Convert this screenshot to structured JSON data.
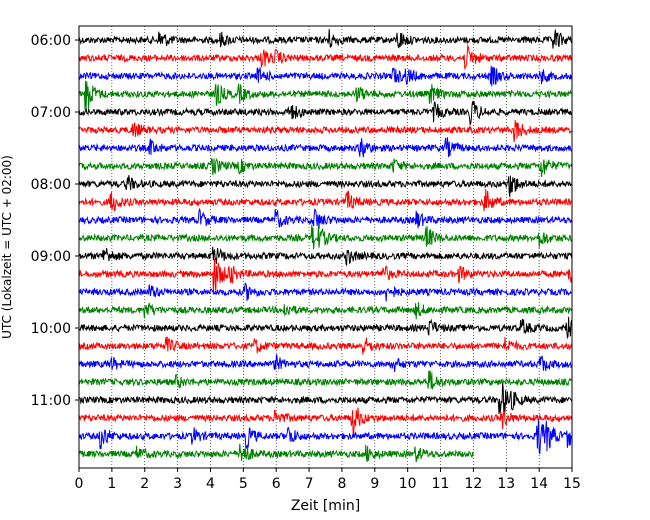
{
  "chart_data": {
    "type": "line",
    "subtype": "helicorder",
    "title": "",
    "xlabel": "Zeit  [min]",
    "ylabel": "UTC (Lokalzeit = UTC + 02:00)",
    "xlim": [
      0,
      15
    ],
    "x_ticks": [
      "0",
      "1",
      "2",
      "3",
      "4",
      "5",
      "6",
      "7",
      "8",
      "9",
      "10",
      "11",
      "12",
      "13",
      "14",
      "15"
    ],
    "y_tick_labels": [
      "06:00",
      "07:00",
      "08:00",
      "09:00",
      "10:00",
      "11:00"
    ],
    "y_tick_rows": [
      0,
      4,
      8,
      12,
      16,
      20
    ],
    "grid": "vertical dotted lines at each minute",
    "legend": "none",
    "color_cycle": [
      "#000000",
      "#ff0000",
      "#0000ff",
      "#008000"
    ],
    "rows": [
      {
        "start": "06:00",
        "color": "#000000",
        "end_min": 15,
        "events": [
          [
            2.5,
            0.45
          ],
          [
            4.35,
            0.3
          ],
          [
            7.6,
            0.5
          ],
          [
            9.75,
            0.45
          ],
          [
            14.5,
            0.5
          ]
        ]
      },
      {
        "start": "06:15",
        "color": "#ff0000",
        "end_min": 15,
        "events": [
          [
            5.6,
            0.45
          ],
          [
            6.0,
            0.35
          ],
          [
            11.8,
            0.6
          ],
          [
            12.0,
            0.3
          ]
        ]
      },
      {
        "start": "06:30",
        "color": "#0000ff",
        "end_min": 15,
        "events": [
          [
            5.5,
            0.35
          ],
          [
            9.6,
            0.4
          ],
          [
            10.0,
            0.35
          ],
          [
            12.6,
            0.45
          ],
          [
            14.1,
            0.3
          ]
        ]
      },
      {
        "start": "06:45",
        "color": "#008000",
        "end_min": 15,
        "events": [
          [
            0.25,
            0.9
          ],
          [
            4.2,
            0.6
          ],
          [
            4.9,
            0.4
          ],
          [
            8.5,
            0.35
          ],
          [
            10.7,
            0.5
          ]
        ]
      },
      {
        "start": "07:00",
        "color": "#000000",
        "end_min": 15,
        "events": [
          [
            6.45,
            0.45
          ],
          [
            10.85,
            0.4
          ],
          [
            11.95,
            0.7
          ]
        ]
      },
      {
        "start": "07:15",
        "color": "#ff0000",
        "end_min": 15,
        "events": [
          [
            1.7,
            0.35
          ],
          [
            13.3,
            0.55
          ]
        ]
      },
      {
        "start": "07:30",
        "color": "#0000ff",
        "end_min": 15,
        "events": [
          [
            2.2,
            0.35
          ],
          [
            8.6,
            0.5
          ],
          [
            11.2,
            0.45
          ]
        ]
      },
      {
        "start": "07:45",
        "color": "#008000",
        "end_min": 15,
        "events": [
          [
            4.1,
            0.4
          ],
          [
            4.9,
            0.3
          ],
          [
            9.6,
            0.3
          ],
          [
            14.1,
            0.55
          ]
        ]
      },
      {
        "start": "08:00",
        "color": "#000000",
        "end_min": 15,
        "events": [
          [
            1.5,
            0.35
          ],
          [
            13.15,
            0.6
          ]
        ]
      },
      {
        "start": "08:15",
        "color": "#ff0000",
        "end_min": 15,
        "events": [
          [
            1.0,
            0.55
          ],
          [
            8.2,
            0.45
          ],
          [
            12.4,
            0.55
          ]
        ]
      },
      {
        "start": "08:30",
        "color": "#0000ff",
        "end_min": 15,
        "events": [
          [
            3.7,
            0.45
          ],
          [
            6.0,
            0.5
          ],
          [
            7.2,
            0.6
          ],
          [
            10.3,
            0.4
          ]
        ]
      },
      {
        "start": "08:45",
        "color": "#008000",
        "end_min": 15,
        "events": [
          [
            7.15,
            0.6
          ],
          [
            7.35,
            0.5
          ],
          [
            10.6,
            0.55
          ],
          [
            14.05,
            0.4
          ]
        ]
      },
      {
        "start": "09:00",
        "color": "#000000",
        "end_min": 15,
        "events": [
          [
            0.8,
            0.45
          ],
          [
            4.1,
            0.4
          ],
          [
            4.25,
            0.3
          ],
          [
            8.2,
            0.35
          ]
        ]
      },
      {
        "start": "09:15",
        "color": "#ff0000",
        "end_min": 15,
        "events": [
          [
            4.15,
            1.0
          ],
          [
            4.6,
            0.5
          ],
          [
            9.25,
            0.45
          ],
          [
            11.6,
            0.35
          ],
          [
            14.95,
            0.45
          ]
        ]
      },
      {
        "start": "09:30",
        "color": "#0000ff",
        "end_min": 15,
        "events": [
          [
            2.2,
            0.3
          ],
          [
            5.1,
            0.35
          ],
          [
            9.4,
            0.4
          ]
        ]
      },
      {
        "start": "09:45",
        "color": "#008000",
        "end_min": 15,
        "events": [
          [
            2.05,
            0.4
          ],
          [
            6.3,
            0.3
          ],
          [
            10.3,
            0.35
          ]
        ]
      },
      {
        "start": "10:00",
        "color": "#000000",
        "end_min": 15,
        "events": [
          [
            10.7,
            0.35
          ],
          [
            13.5,
            0.35
          ],
          [
            14.9,
            0.45
          ]
        ]
      },
      {
        "start": "10:15",
        "color": "#ff0000",
        "end_min": 15,
        "events": [
          [
            2.7,
            0.35
          ],
          [
            5.4,
            0.3
          ],
          [
            8.7,
            0.4
          ],
          [
            13.0,
            0.35
          ]
        ]
      },
      {
        "start": "10:30",
        "color": "#0000ff",
        "end_min": 15,
        "events": [
          [
            1.0,
            0.3
          ],
          [
            6.0,
            0.35
          ],
          [
            9.6,
            0.3
          ],
          [
            14.1,
            0.4
          ]
        ]
      },
      {
        "start": "10:45",
        "color": "#008000",
        "end_min": 15,
        "events": [
          [
            3.0,
            0.25
          ],
          [
            10.7,
            0.5
          ]
        ]
      },
      {
        "start": "11:00",
        "color": "#000000",
        "end_min": 15,
        "events": [
          [
            12.85,
            1.0
          ],
          [
            13.0,
            0.6
          ],
          [
            13.2,
            0.4
          ]
        ]
      },
      {
        "start": "11:15",
        "color": "#ff0000",
        "end_min": 15,
        "events": [
          [
            6.0,
            0.4
          ],
          [
            8.35,
            0.9
          ],
          [
            12.9,
            0.45
          ]
        ]
      },
      {
        "start": "11:30",
        "color": "#0000ff",
        "end_min": 15,
        "events": [
          [
            0.7,
            0.6
          ],
          [
            3.5,
            0.35
          ],
          [
            5.1,
            0.6
          ],
          [
            6.4,
            0.45
          ],
          [
            14.0,
            1.0
          ],
          [
            14.3,
            0.7
          ],
          [
            14.9,
            0.5
          ]
        ]
      },
      {
        "start": "11:45",
        "color": "#008000",
        "end_min": 12,
        "events": [
          [
            1.8,
            0.3
          ],
          [
            4.95,
            0.7
          ],
          [
            8.8,
            0.35
          ],
          [
            10.3,
            0.3
          ]
        ]
      }
    ]
  }
}
